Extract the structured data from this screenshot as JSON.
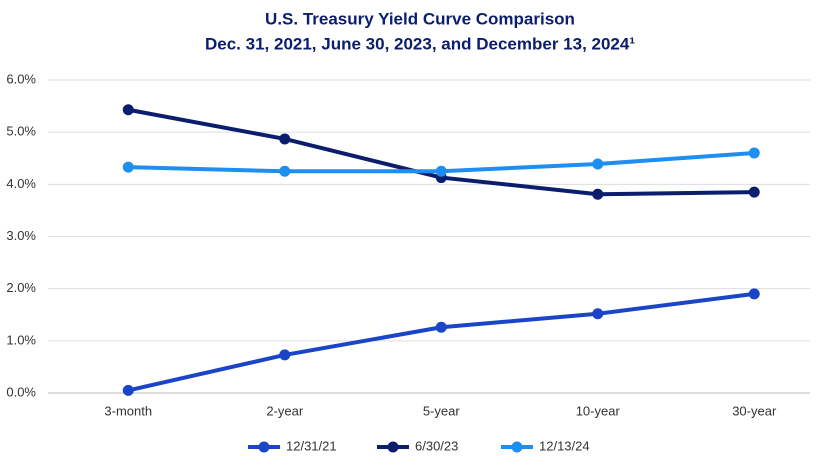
{
  "chart_data": {
    "type": "line",
    "title": "U.S. Treasury Yield Curve Comparison",
    "subtitle": "Dec. 31, 2021, June 30, 2023, and December 13, 2024¹",
    "categories": [
      "3-month",
      "2-year",
      "5-year",
      "10-year",
      "30-year"
    ],
    "series": [
      {
        "name": "12/31/21",
        "color": "#1a45c8",
        "values": [
          0.05,
          0.73,
          1.26,
          1.52,
          1.9
        ]
      },
      {
        "name": "6/30/23",
        "color": "#0b1e6e",
        "values": [
          5.43,
          4.87,
          4.13,
          3.81,
          3.85
        ]
      },
      {
        "name": "12/13/24",
        "color": "#1e8ff0",
        "values": [
          4.33,
          4.25,
          4.25,
          4.39,
          4.6
        ]
      }
    ],
    "ylim": [
      0,
      6
    ],
    "yticks": [
      {
        "value": 0,
        "label": "0.0%"
      },
      {
        "value": 1,
        "label": "1.0%"
      },
      {
        "value": 2,
        "label": "2.0%"
      },
      {
        "value": 3,
        "label": "3.0%"
      },
      {
        "value": 4,
        "label": "4.0%"
      },
      {
        "value": 5,
        "label": "5.0%"
      },
      {
        "value": 6,
        "label": "6.0%"
      }
    ],
    "grid": true,
    "legend": "bottom"
  }
}
